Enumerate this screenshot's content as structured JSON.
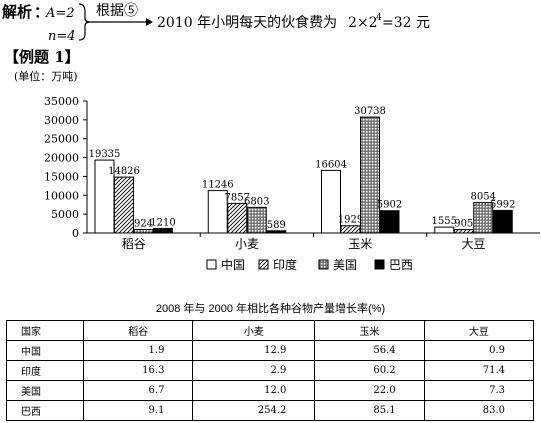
{
  "analysis": {
    "label": "解析",
    "colon": "：",
    "cond_a": "A=2",
    "cond_n": "n=4",
    "rule": "根据⑤",
    "result_prefix": "2010 年小明每天的伙食费为",
    "result_formula_base": "2×2",
    "result_formula_exp": "4",
    "result_formula_tail": "=32 元"
  },
  "example_title": "【例题 1】",
  "chart_data": {
    "type": "bar",
    "unit_label": "(单位：万吨)",
    "categories": [
      "稻谷",
      "小麦",
      "玉米",
      "大豆"
    ],
    "series": [
      {
        "name": "中国",
        "values": [
          19335,
          11246,
          16604,
          1555
        ],
        "pattern": "white"
      },
      {
        "name": "印度",
        "values": [
          14826,
          7857,
          1929,
          905
        ],
        "pattern": "diagonal"
      },
      {
        "name": "美国",
        "values": [
          924,
          6803,
          30738,
          8054
        ],
        "pattern": "dotted"
      },
      {
        "name": "巴西",
        "values": [
          1210,
          589,
          5902,
          5992
        ],
        "pattern": "black"
      }
    ],
    "data_labels": [
      [
        "19335",
        "11246",
        "16604",
        "1555"
      ],
      [
        "14826",
        "7857",
        "1929",
        "905"
      ],
      [
        "924",
        "6803",
        "30738",
        "8054"
      ],
      [
        "1210",
        "589",
        "5902",
        "5992"
      ]
    ],
    "yticks": [
      "0",
      "5000",
      "10000",
      "15000",
      "20000",
      "25000",
      "30000",
      "35000"
    ],
    "ylim": [
      0,
      35000
    ],
    "grid": false,
    "legend_position": "bottom"
  },
  "table": {
    "title": "2008 年与 2000 年相比各种谷物产量增长率(%)",
    "headers": [
      "国家",
      "稻谷",
      "小麦",
      "玉米",
      "大豆"
    ],
    "rows": [
      [
        "中国",
        "1.9",
        "12.9",
        "56.4",
        "0.9"
      ],
      [
        "印度",
        "16.3",
        "2.9",
        "60.2",
        "71.4"
      ],
      [
        "美国",
        "6.7",
        "12.0",
        "22.0",
        "7.3"
      ],
      [
        "巴西",
        "9.1",
        "254.2",
        "85.1",
        "83.0"
      ]
    ]
  }
}
